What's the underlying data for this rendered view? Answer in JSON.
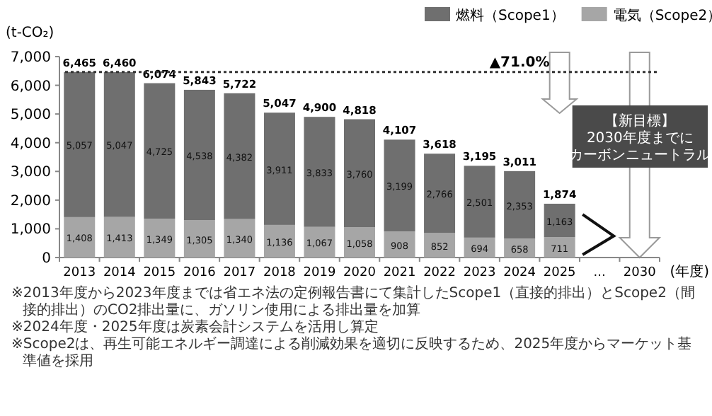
{
  "chart_data": {
    "type": "bar",
    "stacked": true,
    "ylabel": "(t-CO₂)",
    "xlabel": "(年度)",
    "categories": [
      "2013",
      "2014",
      "2015",
      "2016",
      "2017",
      "2018",
      "2019",
      "2020",
      "2021",
      "2022",
      "2023",
      "2024",
      "2025",
      "...",
      "2030"
    ],
    "series": [
      {
        "name": "電気（Scope2）",
        "color": "#a6a6a6",
        "values": [
          1408,
          1413,
          1349,
          1305,
          1340,
          1136,
          1067,
          1058,
          908,
          852,
          694,
          658,
          711,
          null,
          null
        ],
        "value_labels": [
          "1,408",
          "1,413",
          "1,349",
          "1,305",
          "1,340",
          "1,136",
          "1,067",
          "1,058",
          "908",
          "852",
          "694",
          "658",
          "711",
          null,
          null
        ]
      },
      {
        "name": "燃料（Scope1）",
        "color": "#6f6f6f",
        "values": [
          5057,
          5047,
          4725,
          4538,
          4382,
          3911,
          3833,
          3760,
          3199,
          2766,
          2501,
          2353,
          1163,
          null,
          null
        ],
        "value_labels": [
          "5,057",
          "5,047",
          "4,725",
          "4,538",
          "4,382",
          "3,911",
          "3,833",
          "3,760",
          "3,199",
          "2,766",
          "2,501",
          "2,353",
          "1,163",
          null,
          null
        ]
      }
    ],
    "totals": [
      "6,465",
      "6,460",
      "6,074",
      "5,843",
      "5,722",
      "5,047",
      "4,900",
      "4,818",
      "4,107",
      "3,618",
      "3,195",
      "3,011",
      "1,874",
      null,
      null
    ],
    "ylim": [
      0,
      7000
    ],
    "yticks": [
      0,
      {
        "value": 1000,
        "label": "1,000"
      },
      {
        "value": 2000,
        "label": "2,000"
      },
      {
        "value": 3000,
        "label": "3,000"
      },
      {
        "value": 4000,
        "label": "4,000"
      },
      {
        "value": 5000,
        "label": "5,000"
      },
      {
        "value": 6000,
        "label": "6,000"
      },
      {
        "value": 7000,
        "label": "7,000"
      }
    ],
    "ref_lines": [
      {
        "axis": "y",
        "value": 6465,
        "label": "▲71.0%",
        "line_style": "dotted",
        "color": "#333333"
      }
    ],
    "legend": "top right",
    "grid": false,
    "annotations": [
      "【新目標】",
      "2030年度までに",
      "カーボンニュートラル",
      "※2013年度から2023年度までは省エネ法の定例報告書にて集計したScope1（直接的排出）とScope2（間接的排出）のCO2排出量に、ガソリン使用による排出量を加算",
      "※2024年度・2025年度は炭素会計システムを活用し算定",
      "※Scope2は、再生可能エネルギー調達による削減効果を適切に反映するため、2025年度からマーケット基準値を採用"
    ]
  }
}
